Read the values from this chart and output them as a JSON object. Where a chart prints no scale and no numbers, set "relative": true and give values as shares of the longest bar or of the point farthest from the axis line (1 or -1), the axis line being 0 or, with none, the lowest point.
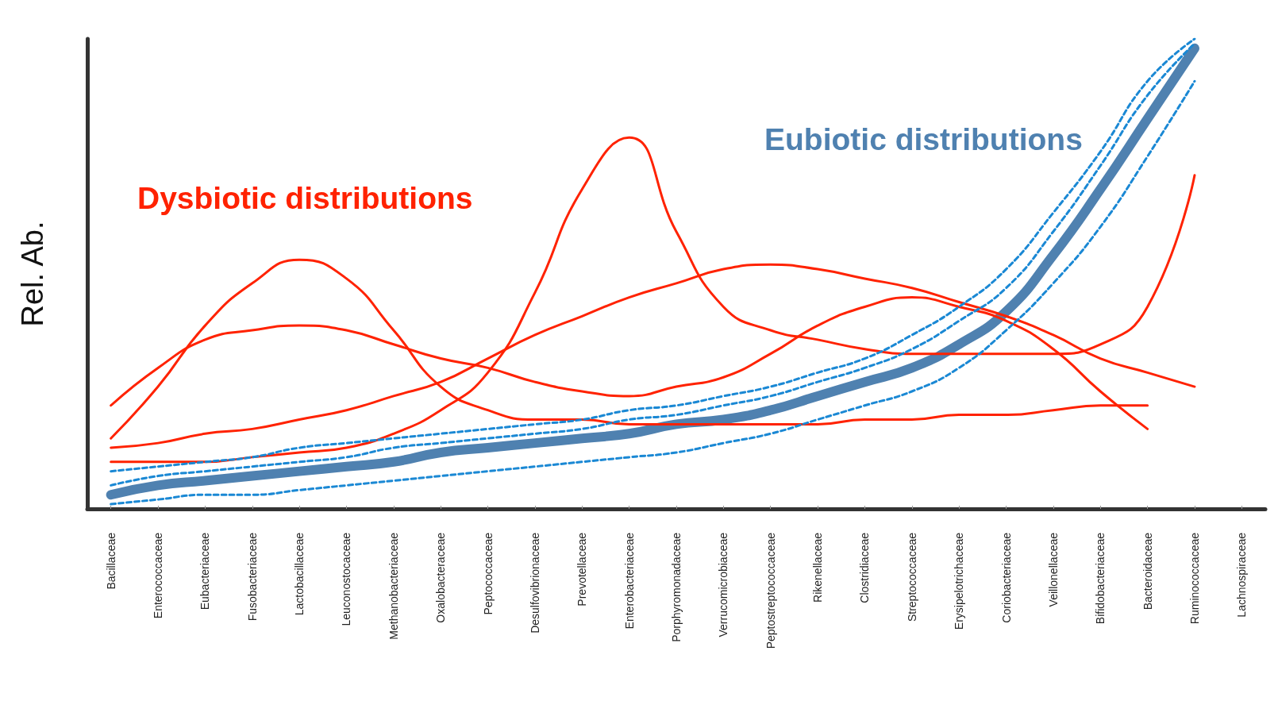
{
  "chart_data": {
    "type": "line",
    "relative": true,
    "ylabel": "Rel. Ab.",
    "marker": "none",
    "categories": [
      "Bacillaceae",
      "Enterococcaceae",
      "Eubacteriaceae",
      "Fusobacteriaceae",
      "Lactobacillaceae",
      "Leuconostocaceae",
      "Methanobacteriaceae",
      "Oxalobacteraceae",
      "Peptococcaceae",
      "Desulfovibrionaceae",
      "Prevotellaceae",
      "Enterobacteriaceae",
      "Porphyromonadaceae",
      "Verrucomicrobiaceae",
      "Peptostreptococcaceae",
      "Rikenellaceae",
      "Clostridiaceae",
      "Streptococcaceae",
      "Erysipelotrichaceae",
      "Coriobacteriaceae",
      "Veillonellaceae",
      "Bifidobacteriaceae",
      "Bacteroidaceae",
      "Ruminococcaceae",
      "Lachnospiraceae"
    ],
    "series": [
      {
        "name": "Dysbiotic distributions",
        "color": "#ff2200",
        "values": [
          0.15,
          0.26,
          0.39,
          0.48,
          0.53,
          0.49,
          0.38,
          0.26,
          0.21,
          0.19,
          0.19,
          0.18,
          0.18,
          0.18,
          0.18,
          0.18,
          0.19,
          0.19,
          0.2,
          0.2,
          0.21,
          0.22,
          0.22,
          null,
          null
        ]
      },
      {
        "color": "#ff2200",
        "values": [
          0.22,
          0.3,
          0.36,
          0.38,
          0.39,
          0.38,
          0.35,
          0.32,
          0.3,
          0.27,
          0.25,
          0.24,
          0.26,
          0.28,
          0.33,
          0.39,
          0.43,
          0.45,
          0.43,
          0.4,
          0.34,
          0.25,
          0.17,
          null,
          null
        ]
      },
      {
        "color": "#ff2200",
        "values": [
          0.1,
          0.1,
          0.1,
          0.11,
          0.12,
          0.13,
          0.16,
          0.21,
          0.29,
          0.46,
          0.68,
          0.79,
          0.59,
          0.43,
          0.38,
          0.36,
          0.34,
          0.33,
          0.33,
          0.33,
          0.33,
          0.35,
          0.43,
          0.71,
          null
        ]
      },
      {
        "color": "#ff2200",
        "values": [
          0.13,
          0.14,
          0.16,
          0.17,
          0.19,
          0.21,
          0.24,
          0.27,
          0.32,
          0.37,
          0.41,
          0.45,
          0.48,
          0.51,
          0.52,
          0.51,
          0.49,
          0.47,
          0.44,
          0.41,
          0.37,
          0.32,
          0.29,
          0.26,
          null
        ]
      },
      {
        "color": "#1a88d4",
        "line_style": "dashed",
        "values": [
          0.08,
          0.09,
          0.1,
          0.11,
          0.13,
          0.14,
          0.15,
          0.16,
          0.17,
          0.18,
          0.19,
          0.21,
          0.22,
          0.24,
          0.26,
          0.29,
          0.32,
          0.37,
          0.43,
          0.51,
          0.63,
          0.76,
          0.91,
          1.0,
          null
        ]
      },
      {
        "color": "#1a88d4",
        "line_style": "dashed",
        "values": [
          0.05,
          0.07,
          0.08,
          0.09,
          0.1,
          0.11,
          0.13,
          0.14,
          0.15,
          0.16,
          0.17,
          0.19,
          0.2,
          0.22,
          0.24,
          0.27,
          0.3,
          0.34,
          0.4,
          0.47,
          0.59,
          0.73,
          0.88,
          0.99,
          null
        ]
      },
      {
        "color": "#1a88d4",
        "line_style": "dashed",
        "values": [
          0.01,
          0.02,
          0.03,
          0.03,
          0.04,
          0.05,
          0.06,
          0.07,
          0.08,
          0.09,
          0.1,
          0.11,
          0.12,
          0.14,
          0.16,
          0.19,
          0.22,
          0.25,
          0.3,
          0.38,
          0.48,
          0.6,
          0.75,
          0.91,
          null
        ]
      },
      {
        "name": "Eubiotic distributions",
        "color": "#4f81b0",
        "line_style": "solid",
        "values": [
          0.03,
          0.05,
          0.06,
          0.07,
          0.08,
          0.09,
          0.1,
          0.12,
          0.13,
          0.14,
          0.15,
          0.16,
          0.18,
          0.19,
          0.21,
          0.24,
          0.27,
          0.3,
          0.35,
          0.42,
          0.54,
          0.68,
          0.83,
          0.98,
          null
        ]
      }
    ]
  }
}
